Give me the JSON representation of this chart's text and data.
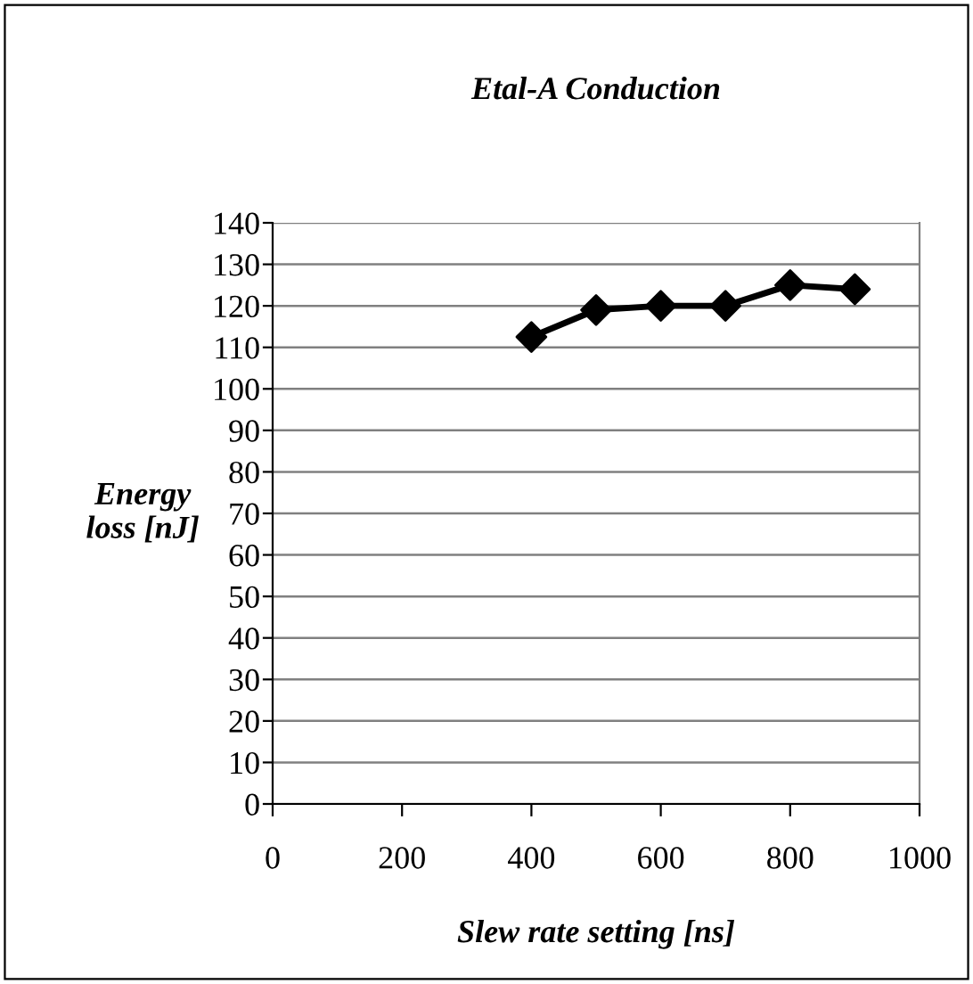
{
  "chart_data": {
    "type": "line",
    "title": "Etal-A Conduction",
    "xlabel": "Slew rate setting [ns]",
    "ylabel": "Energy\nloss [nJ]",
    "x": [
      400,
      500,
      600,
      700,
      800,
      900
    ],
    "series": [
      {
        "color": "#000000",
        "values": [
          112.5,
          119,
          120,
          120,
          125,
          124
        ]
      }
    ],
    "xlim": [
      0,
      1000
    ],
    "xticks": [
      0,
      200,
      400,
      600,
      800,
      1000
    ],
    "ylim": [
      0,
      140
    ],
    "yticks": [
      0,
      10,
      20,
      30,
      40,
      50,
      60,
      70,
      80,
      90,
      100,
      110,
      120,
      130,
      140
    ],
    "grid": "y",
    "marker": "diamond",
    "line_style": "solid",
    "legend": false
  }
}
